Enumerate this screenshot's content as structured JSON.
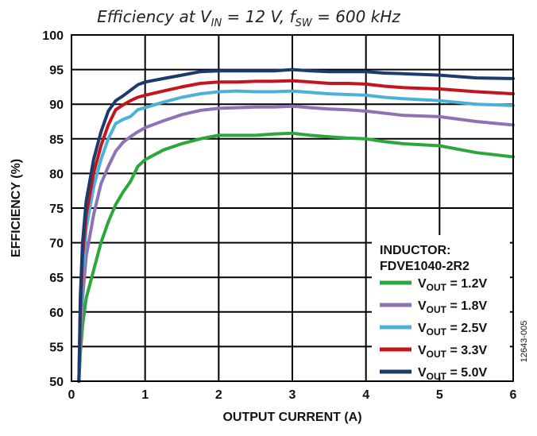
{
  "chart_data": {
    "type": "line",
    "title": {
      "prefix": "Efficiency at V",
      "sub1": "IN",
      "mid": " = 12 V, f",
      "sub2": "SW",
      "suffix": " = 600 kHz"
    },
    "xlabel": "OUTPUT CURRENT (A)",
    "ylabel": "EFFICIENCY (%)",
    "xlim": [
      0,
      6
    ],
    "ylim": [
      50,
      100
    ],
    "xticks": [
      "0",
      "1",
      "2",
      "3",
      "4",
      "5",
      "6"
    ],
    "yticks": [
      "50",
      "55",
      "60",
      "65",
      "70",
      "75",
      "80",
      "85",
      "90",
      "95",
      "100"
    ],
    "grid": true,
    "legend": {
      "title_line1": "INDUCTOR:",
      "title_line2": "FDVE1040-2R2",
      "placement": "lower-right"
    },
    "figure_code": "12643-005",
    "series": [
      {
        "name": "VOUT = 1.2V",
        "label_main": "V",
        "label_sub": "OUT",
        "label_rest": " = 1.2V",
        "color": "#2aa83a",
        "x": [
          0.1,
          0.12,
          0.15,
          0.2,
          0.3,
          0.4,
          0.5,
          0.6,
          0.7,
          0.8,
          0.9,
          1.0,
          1.25,
          1.5,
          1.75,
          2.0,
          2.25,
          2.5,
          2.75,
          3.0,
          3.25,
          3.5,
          3.75,
          4.0,
          4.25,
          4.5,
          5.0,
          5.5,
          6.0
        ],
        "y": [
          50,
          54,
          58,
          62,
          66,
          70,
          73,
          75.5,
          77.3,
          78.8,
          81,
          82,
          83.4,
          84.3,
          85,
          85.5,
          85.5,
          85.5,
          85.7,
          85.8,
          85.5,
          85.3,
          85.1,
          85.0,
          84.6,
          84.3,
          84.0,
          83.0,
          82.4
        ]
      },
      {
        "name": "VOUT = 1.8V",
        "label_main": "V",
        "label_sub": "OUT",
        "label_rest": " = 1.8V",
        "color": "#8e72b4",
        "x": [
          0.1,
          0.12,
          0.15,
          0.2,
          0.3,
          0.4,
          0.5,
          0.6,
          0.7,
          0.8,
          0.9,
          1.0,
          1.25,
          1.5,
          1.75,
          2.0,
          2.25,
          2.5,
          2.75,
          3.0,
          3.25,
          3.5,
          3.75,
          4.0,
          4.25,
          4.5,
          5.0,
          5.5,
          6.0
        ],
        "y": [
          50,
          56,
          62,
          68,
          74,
          78.5,
          81,
          83.2,
          84.5,
          85.3,
          86,
          86.6,
          87.6,
          88.5,
          89.1,
          89.4,
          89.5,
          89.6,
          89.6,
          89.7,
          89.5,
          89.3,
          89.2,
          89.0,
          88.7,
          88.4,
          88.2,
          87.5,
          87.0
        ]
      },
      {
        "name": "VOUT = 2.5V",
        "label_main": "V",
        "label_sub": "OUT",
        "label_rest": " = 2.5V",
        "color": "#4cb1d8",
        "x": [
          0.1,
          0.12,
          0.15,
          0.2,
          0.3,
          0.4,
          0.5,
          0.6,
          0.7,
          0.8,
          0.9,
          1.0,
          1.25,
          1.5,
          1.75,
          2.0,
          2.25,
          2.5,
          2.75,
          3.0,
          3.25,
          3.5,
          3.75,
          4.0,
          4.25,
          4.5,
          5.0,
          5.5,
          6.0
        ],
        "y": [
          50,
          58,
          65,
          72,
          78,
          82,
          85,
          87.2,
          87.8,
          88.2,
          89.2,
          89.5,
          90.3,
          91.0,
          91.5,
          91.8,
          91.9,
          91.8,
          91.8,
          91.9,
          91.7,
          91.5,
          91.4,
          91.3,
          91.0,
          90.8,
          90.5,
          90.0,
          89.8
        ]
      },
      {
        "name": "VOUT = 3.3V",
        "label_main": "V",
        "label_sub": "OUT",
        "label_rest": " = 3.3V",
        "color": "#c4141c",
        "x": [
          0.1,
          0.12,
          0.15,
          0.2,
          0.3,
          0.4,
          0.5,
          0.6,
          0.7,
          0.8,
          0.9,
          1.0,
          1.25,
          1.5,
          1.75,
          2.0,
          2.25,
          2.5,
          2.75,
          3.0,
          3.25,
          3.5,
          3.75,
          4.0,
          4.25,
          4.5,
          5.0,
          5.5,
          6.0
        ],
        "y": [
          50,
          60,
          68,
          74,
          80,
          84,
          87,
          89.2,
          89.9,
          90.5,
          91.0,
          91.3,
          91.9,
          92.5,
          93.0,
          93.2,
          93.2,
          93.3,
          93.3,
          93.4,
          93.2,
          93.0,
          93.0,
          92.9,
          92.6,
          92.4,
          92.2,
          91.8,
          91.5
        ]
      },
      {
        "name": "VOUT = 5.0V",
        "label_main": "V",
        "label_sub": "OUT",
        "label_rest": " = 5.0V",
        "color": "#1c3a6b",
        "x": [
          0.1,
          0.12,
          0.15,
          0.2,
          0.3,
          0.4,
          0.5,
          0.6,
          0.7,
          0.8,
          0.9,
          1.0,
          1.25,
          1.5,
          1.75,
          2.0,
          2.25,
          2.5,
          2.75,
          3.0,
          3.25,
          3.5,
          3.75,
          4.0,
          4.25,
          4.5,
          5.0,
          5.5,
          6.0
        ],
        "y": [
          50,
          62,
          70,
          76,
          82,
          86,
          89,
          90.5,
          91.2,
          92.0,
          92.8,
          93.2,
          93.7,
          94.2,
          94.7,
          94.8,
          94.8,
          94.8,
          94.8,
          95.0,
          94.8,
          94.7,
          94.7,
          94.7,
          94.5,
          94.4,
          94.2,
          93.8,
          93.7
        ]
      }
    ]
  }
}
